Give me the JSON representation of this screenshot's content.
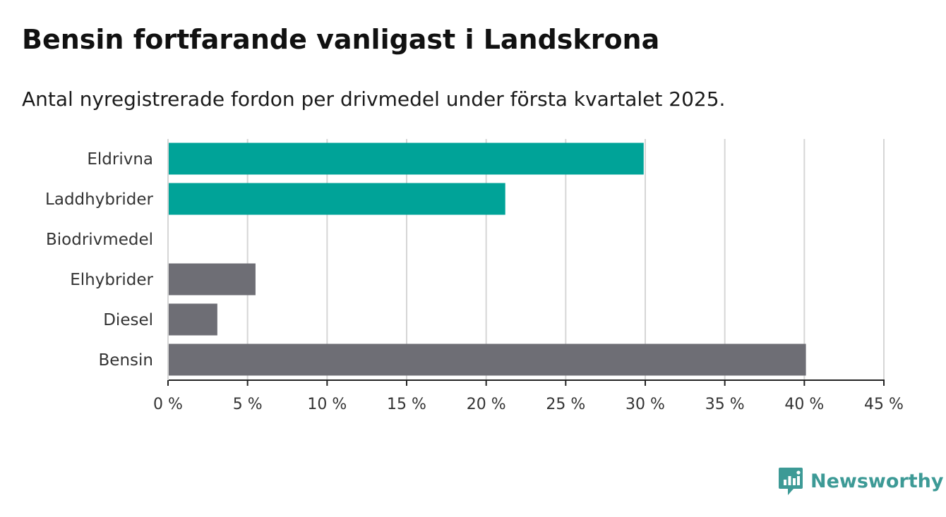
{
  "title": "Bensin fortfarande vanligast i Landskrona",
  "subtitle": "Antal nyregistrerade fordon per drivmedel under första kvartalet 2025.",
  "brand": {
    "name": "Newsworthy",
    "icon": "newsworthy-logo-icon",
    "color": "#3d9a96"
  },
  "chart_data": {
    "type": "bar",
    "orientation": "horizontal",
    "categories": [
      "Eldrivna",
      "Laddhybrider",
      "Biodrivmedel",
      "Elhybrider",
      "Diesel",
      "Bensin"
    ],
    "values": [
      29.9,
      21.2,
      0,
      5.5,
      3.1,
      40.1
    ],
    "colors": [
      "#00a398",
      "#00a398",
      "#00a398",
      "#6e6e75",
      "#6e6e75",
      "#6e6e75"
    ],
    "xlim": [
      0,
      45
    ],
    "xticks": [
      0,
      5,
      10,
      15,
      20,
      25,
      30,
      35,
      40,
      45
    ],
    "xtick_labels": [
      "0 %",
      "5 %",
      "10 %",
      "15 %",
      "20 %",
      "25 %",
      "30 %",
      "35 %",
      "40 %",
      "45 %"
    ],
    "xlabel": "",
    "ylabel": "",
    "grid": true,
    "legend": "none"
  }
}
